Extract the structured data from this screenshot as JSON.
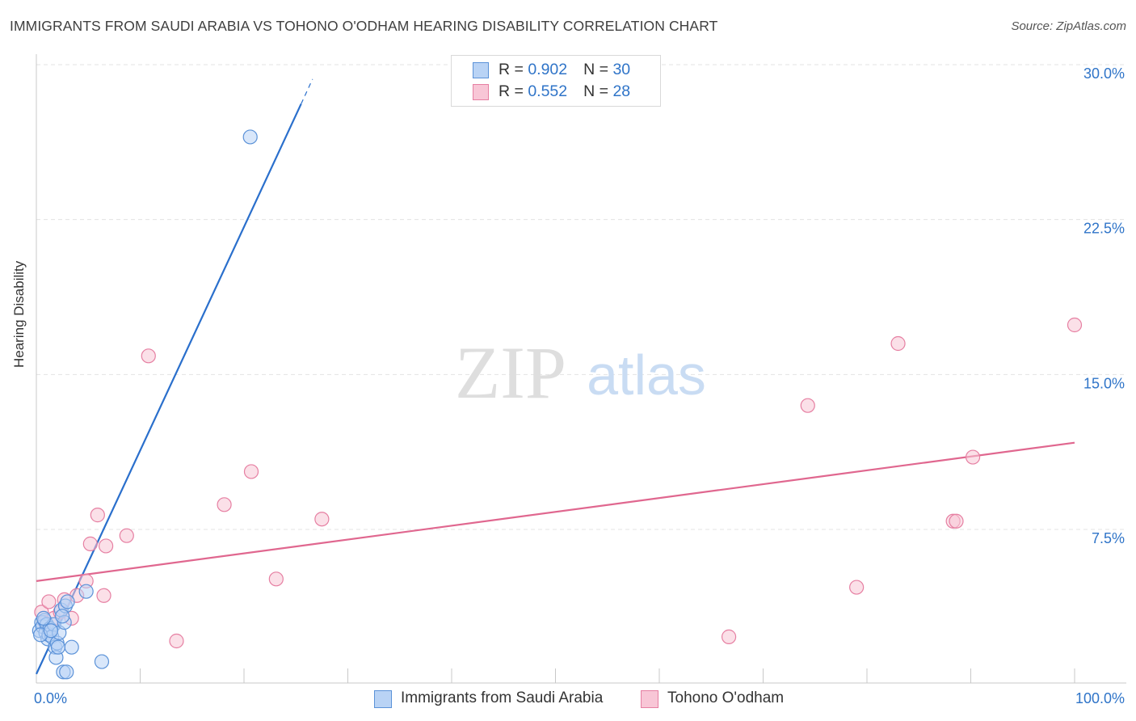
{
  "title": "IMMIGRANTS FROM SAUDI ARABIA VS TOHONO O'ODHAM HEARING DISABILITY CORRELATION CHART",
  "source": "Source: ZipAtlas.com",
  "watermark": {
    "zip": "ZIP",
    "atlas": "atlas"
  },
  "legend": {
    "rows": [
      {
        "r_label": "R = ",
        "r_value": "0.902",
        "n_label": "N = ",
        "n_value": "30"
      },
      {
        "r_label": "R = ",
        "r_value": "0.552",
        "n_label": "N = ",
        "n_value": "28"
      }
    ]
  },
  "bottom_legend": {
    "series1": "Immigrants from Saudi Arabia",
    "series2": "Tohono O'odham"
  },
  "colors": {
    "blue_fill": "#b9d3f5",
    "blue_stroke": "#5b92d8",
    "blue_line": "#2a6fcc",
    "pink_fill": "#f8c6d6",
    "pink_stroke": "#e67fa2",
    "pink_line": "#e0678f",
    "tick_text": "#2f74c8",
    "grid": "#e3e3e3"
  },
  "chart_data": {
    "type": "scatter",
    "title": "IMMIGRANTS FROM SAUDI ARABIA VS TOHONO O'ODHAM HEARING DISABILITY CORRELATION CHART",
    "xlabel": "",
    "ylabel": "Hearing Disability",
    "xlim": [
      0,
      100
    ],
    "ylim": [
      0,
      31
    ],
    "x_tick_labels": [
      {
        "value": 0,
        "label": "0.0%"
      },
      {
        "value": 100,
        "label": "100.0%"
      }
    ],
    "y_tick_labels": [
      {
        "value": 7.5,
        "label": "7.5%"
      },
      {
        "value": 15.0,
        "label": "15.0%"
      },
      {
        "value": 22.5,
        "label": "22.5%"
      },
      {
        "value": 30.0,
        "label": "30.0%"
      }
    ],
    "x_minor_ticks": [
      10,
      20,
      30,
      40,
      50,
      60,
      70,
      80,
      90,
      100
    ],
    "series": [
      {
        "name": "Immigrants from Saudi Arabia",
        "color": "blue",
        "points": [
          [
            0.3,
            2.6
          ],
          [
            0.5,
            3.0
          ],
          [
            0.6,
            2.8
          ],
          [
            0.8,
            3.1
          ],
          [
            0.9,
            2.5
          ],
          [
            1.0,
            2.9
          ],
          [
            1.1,
            2.2
          ],
          [
            1.2,
            2.4
          ],
          [
            1.3,
            2.7
          ],
          [
            1.5,
            2.3
          ],
          [
            1.7,
            2.9
          ],
          [
            1.8,
            1.8
          ],
          [
            1.9,
            1.3
          ],
          [
            2.0,
            2.0
          ],
          [
            2.1,
            1.8
          ],
          [
            2.2,
            2.5
          ],
          [
            2.4,
            3.6
          ],
          [
            2.6,
            0.6
          ],
          [
            2.7,
            3.0
          ],
          [
            2.8,
            3.8
          ],
          [
            2.9,
            0.6
          ],
          [
            3.0,
            4.0
          ],
          [
            3.4,
            1.8
          ],
          [
            4.8,
            4.5
          ],
          [
            6.3,
            1.1
          ],
          [
            20.6,
            26.5
          ],
          [
            0.4,
            2.4
          ],
          [
            0.7,
            3.2
          ],
          [
            1.4,
            2.6
          ],
          [
            2.5,
            3.3
          ]
        ]
      },
      {
        "name": "Tohono O'odham",
        "color": "pink",
        "points": [
          [
            0.5,
            3.5
          ],
          [
            0.8,
            3.0
          ],
          [
            1.2,
            4.0
          ],
          [
            1.7,
            3.2
          ],
          [
            2.3,
            3.5
          ],
          [
            2.7,
            4.1
          ],
          [
            3.4,
            3.2
          ],
          [
            3.9,
            4.3
          ],
          [
            4.8,
            5.0
          ],
          [
            5.2,
            6.8
          ],
          [
            5.9,
            8.2
          ],
          [
            6.7,
            6.7
          ],
          [
            6.5,
            4.3
          ],
          [
            8.7,
            7.2
          ],
          [
            10.8,
            15.9
          ],
          [
            13.5,
            2.1
          ],
          [
            18.1,
            8.7
          ],
          [
            20.7,
            10.3
          ],
          [
            23.1,
            5.1
          ],
          [
            27.5,
            8.0
          ],
          [
            66.7,
            2.3
          ],
          [
            74.3,
            13.5
          ],
          [
            79.0,
            4.7
          ],
          [
            83.0,
            16.5
          ],
          [
            88.3,
            7.9
          ],
          [
            88.6,
            7.9
          ],
          [
            90.2,
            11.0
          ],
          [
            100.0,
            17.4
          ]
        ]
      }
    ],
    "trend_lines": [
      {
        "series": "Immigrants from Saudi Arabia",
        "x": [
          0,
          25.5
        ],
        "y": [
          0.5,
          28.1
        ],
        "dashed_extension": {
          "x": [
            25.5,
            26.6
          ],
          "y": [
            28.1,
            29.3
          ]
        }
      },
      {
        "series": "Tohono O'odham",
        "x": [
          0,
          100
        ],
        "y": [
          5.0,
          11.7
        ]
      }
    ]
  }
}
